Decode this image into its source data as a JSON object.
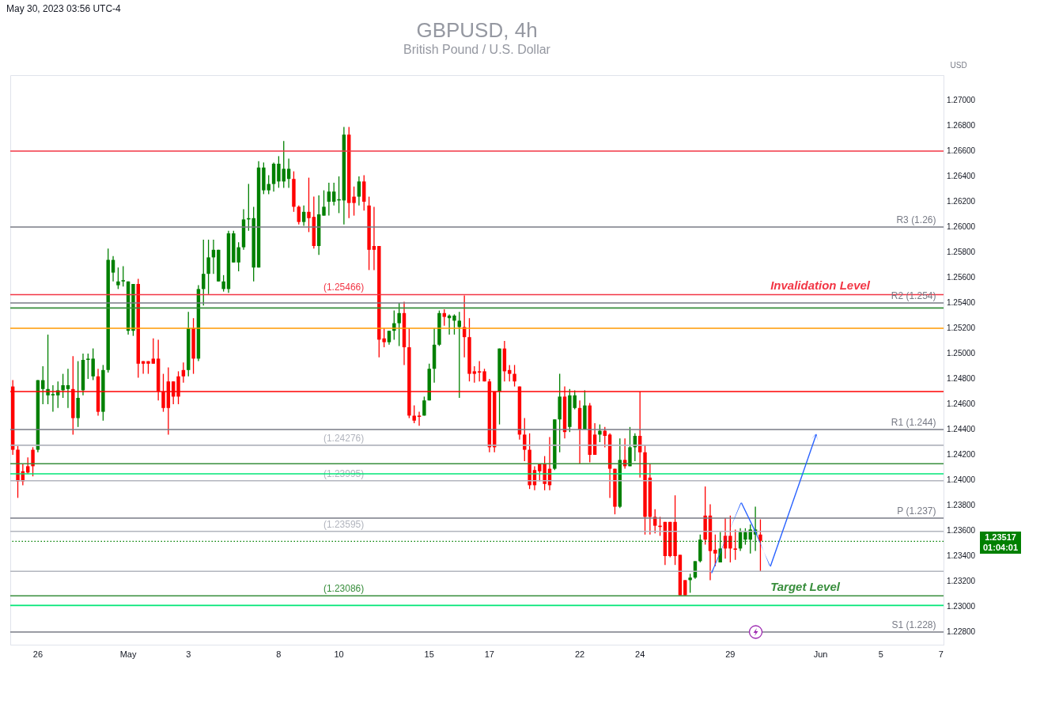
{
  "chart_data": {
    "type": "candlestick",
    "title": "GBPUSD, 4h",
    "subtitle": "British Pound / U.S. Dollar",
    "ylabel": "USD",
    "categories": [
      null,
      null,
      null,
      null,
      null,
      "26",
      null,
      null,
      null,
      null,
      null,
      null,
      null,
      null,
      null,
      null,
      null,
      null,
      null,
      null,
      null,
      null,
      null,
      "May",
      null,
      null,
      null,
      null,
      null,
      null,
      null,
      null,
      null,
      null,
      null,
      "3",
      null,
      null,
      null,
      null,
      null,
      null,
      null,
      null,
      null,
      null,
      null,
      null,
      null,
      null,
      null,
      null,
      null,
      "8",
      null,
      null,
      null,
      null,
      null,
      null,
      null,
      null,
      null,
      null,
      null,
      "10",
      null,
      null,
      null,
      null,
      null,
      null,
      null,
      null,
      null,
      null,
      null,
      null,
      null,
      null,
      null,
      null,
      null,
      "15",
      null,
      null,
      null,
      null,
      null,
      null,
      null,
      null,
      null,
      null,
      null,
      "17",
      null,
      null,
      null,
      null,
      null,
      null,
      null,
      null,
      null,
      null,
      null,
      null,
      null,
      null,
      null,
      null,
      null,
      "22",
      null,
      null,
      null,
      null,
      null,
      null,
      null,
      null,
      null,
      null,
      null,
      "24",
      null,
      null,
      null,
      null,
      null,
      null,
      null,
      null,
      null,
      null,
      null,
      null,
      null,
      null,
      null,
      null,
      null,
      "29",
      null,
      null,
      null,
      null,
      null,
      null,
      null,
      null,
      null,
      null,
      null,
      null,
      null,
      null,
      null,
      null,
      null,
      "Jun",
      null,
      null,
      null,
      null,
      null,
      null,
      null,
      null,
      null,
      null,
      null,
      "5",
      null,
      null,
      null,
      null,
      null,
      null,
      null,
      null,
      null,
      null,
      null,
      "7"
    ],
    "ohlc": [
      [
        1.2474,
        1.2479,
        1.242,
        1.2424
      ],
      [
        1.2424,
        1.2427,
        1.2386,
        1.2399
      ],
      [
        1.2407,
        1.2413,
        1.2396,
        1.2399
      ],
      [
        1.2411,
        1.2418,
        1.2405,
        1.2406
      ],
      [
        1.2424,
        1.2426,
        1.2403,
        1.2411
      ],
      [
        1.2424,
        1.2479,
        1.2422,
        1.2479
      ],
      [
        1.2472,
        1.249,
        1.246,
        1.2479
      ],
      [
        1.2467,
        1.2515,
        1.246,
        1.2472
      ],
      [
        1.2467,
        1.2475,
        1.2454,
        1.2468
      ],
      [
        1.2467,
        1.2478,
        1.2457,
        1.2471
      ],
      [
        1.2471,
        1.2484,
        1.2465,
        1.2475
      ],
      [
        1.2472,
        1.2488,
        1.2457,
        1.2475
      ],
      [
        1.2472,
        1.2498,
        1.2436,
        1.2449
      ],
      [
        1.2449,
        1.2494,
        1.2442,
        1.2465
      ],
      [
        1.2471,
        1.25,
        1.2467,
        1.2495
      ],
      [
        1.2495,
        1.25,
        1.248,
        1.2496
      ],
      [
        1.2482,
        1.2504,
        1.2479,
        1.2496
      ],
      [
        1.2482,
        1.2488,
        1.2451,
        1.2454
      ],
      [
        1.2454,
        1.2491,
        1.2447,
        1.2487
      ],
      [
        1.2487,
        1.2583,
        1.2485,
        1.2574
      ],
      [
        1.2564,
        1.2577,
        1.2557,
        1.2574
      ],
      [
        1.2554,
        1.2568,
        1.2551,
        1.2557
      ],
      [
        1.2557,
        1.2569,
        1.2553,
        1.2558
      ],
      [
        1.2518,
        1.2557,
        1.2515,
        1.2557
      ],
      [
        1.2518,
        1.2555,
        1.2514,
        1.2555
      ],
      [
        1.2555,
        1.2559,
        1.2481,
        1.2492
      ],
      [
        1.2494,
        1.2494,
        1.2484,
        1.2492
      ],
      [
        1.2494,
        1.2494,
        1.2484,
        1.2492
      ],
      [
        1.2496,
        1.2512,
        1.2492,
        1.2492
      ],
      [
        1.2496,
        1.2511,
        1.2463,
        1.247
      ],
      [
        1.247,
        1.2484,
        1.2454,
        1.2457
      ],
      [
        1.2478,
        1.2489,
        1.2436,
        1.2457
      ],
      [
        1.2478,
        1.2478,
        1.246,
        1.2466
      ],
      [
        1.2482,
        1.2486,
        1.246,
        1.2466
      ],
      [
        1.2487,
        1.2493,
        1.2477,
        1.2482
      ],
      [
        1.2487,
        1.2533,
        1.2482,
        1.252
      ],
      [
        1.252,
        1.2528,
        1.2484,
        1.2496
      ],
      [
        1.2496,
        1.2554,
        1.2494,
        1.2551
      ],
      [
        1.2551,
        1.259,
        1.2538,
        1.2563
      ],
      [
        1.2563,
        1.259,
        1.2547,
        1.2576
      ],
      [
        1.2576,
        1.259,
        1.2563,
        1.2582
      ],
      [
        1.2557,
        1.2582,
        1.2557,
        1.2582
      ],
      [
        1.2551,
        1.2562,
        1.2549,
        1.2557
      ],
      [
        1.2551,
        1.2597,
        1.2548,
        1.2595
      ],
      [
        1.2572,
        1.2597,
        1.2572,
        1.2595
      ],
      [
        1.2572,
        1.2588,
        1.2565,
        1.2584
      ],
      [
        1.2584,
        1.2614,
        1.2582,
        1.2606
      ],
      [
        1.2606,
        1.2634,
        1.2597,
        1.2607
      ],
      [
        1.2568,
        1.2616,
        1.2557,
        1.2607
      ],
      [
        1.2568,
        1.2652,
        1.2568,
        1.2647
      ],
      [
        1.2629,
        1.2651,
        1.2626,
        1.2647
      ],
      [
        1.2629,
        1.2641,
        1.2626,
        1.2634
      ],
      [
        1.2634,
        1.2651,
        1.2628,
        1.265
      ],
      [
        1.2636,
        1.2656,
        1.2631,
        1.265
      ],
      [
        1.2636,
        1.2668,
        1.2631,
        1.2646
      ],
      [
        1.2638,
        1.2654,
        1.2631,
        1.2646
      ],
      [
        1.2638,
        1.2644,
        1.2612,
        1.2616
      ],
      [
        1.2616,
        1.2617,
        1.2602,
        1.2604
      ],
      [
        1.2604,
        1.2617,
        1.2601,
        1.2612
      ],
      [
        1.2612,
        1.2639,
        1.2596,
        1.2607
      ],
      [
        1.2608,
        1.2624,
        1.2583,
        1.2585
      ],
      [
        1.2585,
        1.2625,
        1.2578,
        1.261
      ],
      [
        1.2609,
        1.2629,
        1.2609,
        1.2616
      ],
      [
        1.262,
        1.2635,
        1.2609,
        1.2628
      ],
      [
        1.262,
        1.2635,
        1.2617,
        1.2628
      ],
      [
        1.2621,
        1.264,
        1.2611,
        1.2622
      ],
      [
        1.2621,
        1.2679,
        1.2602,
        1.2673
      ],
      [
        1.2673,
        1.2679,
        1.2607,
        1.2619
      ],
      [
        1.2624,
        1.2632,
        1.2609,
        1.2619
      ],
      [
        1.2624,
        1.264,
        1.2617,
        1.2636
      ],
      [
        1.2636,
        1.2641,
        1.2613,
        1.262
      ],
      [
        1.2617,
        1.2624,
        1.2566,
        1.2582
      ],
      [
        1.2585,
        1.2616,
        1.2566,
        1.2582
      ],
      [
        1.2585,
        1.2585,
        1.2497,
        1.2511
      ],
      [
        1.2512,
        1.252,
        1.2505,
        1.2509
      ],
      [
        1.2509,
        1.2518,
        1.2507,
        1.2518
      ],
      [
        1.2518,
        1.2534,
        1.2511,
        1.2524
      ],
      [
        1.2524,
        1.254,
        1.2506,
        1.2532
      ],
      [
        1.2532,
        1.2541,
        1.2491,
        1.2505
      ],
      [
        1.2505,
        1.252,
        1.2449,
        1.2451
      ],
      [
        1.2451,
        1.2459,
        1.2445,
        1.2447
      ],
      [
        1.2451,
        1.2454,
        1.2443,
        1.245
      ],
      [
        1.2451,
        1.2466,
        1.2451,
        1.2463
      ],
      [
        1.2463,
        1.2492,
        1.2463,
        1.2488
      ],
      [
        1.2488,
        1.252,
        1.2477,
        1.2507
      ],
      [
        1.2507,
        1.2534,
        1.2506,
        1.2532
      ],
      [
        1.2532,
        1.2535,
        1.2522,
        1.2529
      ],
      [
        1.2528,
        1.2531,
        1.2515,
        1.253
      ],
      [
        1.2526,
        1.2531,
        1.2515,
        1.253
      ],
      [
        1.2521,
        1.2533,
        1.2465,
        1.2526
      ],
      [
        1.2521,
        1.2546,
        1.2497,
        1.2513
      ],
      [
        1.2513,
        1.2528,
        1.2478,
        1.2484
      ],
      [
        1.2486,
        1.249,
        1.2477,
        1.2484
      ],
      [
        1.2486,
        1.2494,
        1.2478,
        1.2485
      ],
      [
        1.2486,
        1.2488,
        1.2478,
        1.2478
      ],
      [
        1.2478,
        1.248,
        1.2422,
        1.2426
      ],
      [
        1.247,
        1.247,
        1.2422,
        1.2426
      ],
      [
        1.247,
        1.2504,
        1.2444,
        1.2504
      ],
      [
        1.2504,
        1.251,
        1.2478,
        1.2486
      ],
      [
        1.2487,
        1.2491,
        1.2478,
        1.2484
      ],
      [
        1.2484,
        1.2491,
        1.2474,
        1.2478
      ],
      [
        1.2474,
        1.2474,
        1.2432,
        1.2436
      ],
      [
        1.2436,
        1.2449,
        1.2415,
        1.2424
      ],
      [
        1.2424,
        1.2437,
        1.2393,
        1.2396
      ],
      [
        1.2408,
        1.2411,
        1.2392,
        1.2396
      ],
      [
        1.2413,
        1.2413,
        1.2399,
        1.2407
      ],
      [
        1.2413,
        1.2419,
        1.2392,
        1.2397
      ],
      [
        1.2409,
        1.2434,
        1.2392,
        1.2396
      ],
      [
        1.2409,
        1.2448,
        1.2408,
        1.2448
      ],
      [
        1.2448,
        1.2484,
        1.2422,
        1.2466
      ],
      [
        1.2466,
        1.2474,
        1.2433,
        1.2438
      ],
      [
        1.2442,
        1.2472,
        1.2438,
        1.2467
      ],
      [
        1.2457,
        1.2471,
        1.2456,
        1.2467
      ],
      [
        1.2457,
        1.2463,
        1.2413,
        1.244
      ],
      [
        1.244,
        1.2471,
        1.244,
        1.2459
      ],
      [
        1.2459,
        1.2461,
        1.2414,
        1.242
      ],
      [
        1.2436,
        1.2445,
        1.242,
        1.242
      ],
      [
        1.2436,
        1.2444,
        1.243,
        1.2439
      ],
      [
        1.2439,
        1.2442,
        1.2426,
        1.2435
      ],
      [
        1.2436,
        1.2437,
        1.2386,
        1.2409
      ],
      [
        1.2409,
        1.2409,
        1.2373,
        1.2379
      ],
      [
        1.2379,
        1.2433,
        1.2378,
        1.2416
      ],
      [
        1.2416,
        1.2433,
        1.2409,
        1.2411
      ],
      [
        1.2411,
        1.2442,
        1.2411,
        1.2426
      ],
      [
        1.2426,
        1.2437,
        1.2415,
        1.2435
      ],
      [
        1.2435,
        1.247,
        1.2402,
        1.2422
      ],
      [
        1.2422,
        1.2428,
        1.2357,
        1.2371
      ],
      [
        1.2402,
        1.2413,
        1.2357,
        1.2371
      ],
      [
        1.2371,
        1.2377,
        1.2358,
        1.2364
      ],
      [
        1.2364,
        1.2371,
        1.2356,
        1.2363
      ],
      [
        1.2367,
        1.2367,
        1.2333,
        1.234
      ],
      [
        1.2367,
        1.2367,
        1.2339,
        1.234
      ],
      [
        1.2367,
        1.2388,
        1.2333,
        1.234
      ],
      [
        1.2341,
        1.2341,
        1.2309,
        1.2309
      ],
      [
        1.2321,
        1.2321,
        1.2309,
        1.2309
      ],
      [
        1.2321,
        1.2326,
        1.2311,
        1.2323
      ],
      [
        1.2323,
        1.2336,
        1.2322,
        1.2336
      ],
      [
        1.2336,
        1.2357,
        1.2335,
        1.2353
      ],
      [
        1.2372,
        1.2395,
        1.2349,
        1.2353
      ],
      [
        1.2372,
        1.2381,
        1.2321,
        1.2344
      ],
      [
        1.2345,
        1.2357,
        1.2332,
        1.2342
      ],
      [
        1.2335,
        1.2359,
        1.2335,
        1.2346
      ],
      [
        1.2356,
        1.237,
        1.2338,
        1.2346
      ],
      [
        1.2356,
        1.2372,
        1.2335,
        1.2346
      ],
      [
        1.2346,
        1.2361,
        1.2337,
        1.2345
      ],
      [
        1.2346,
        1.2362,
        1.2344,
        1.2359
      ],
      [
        1.2353,
        1.2362,
        1.2349,
        1.2359
      ],
      [
        1.2353,
        1.2365,
        1.2342,
        1.2361
      ],
      [
        1.2357,
        1.2379,
        1.2344,
        1.2361
      ],
      [
        1.2357,
        1.2369,
        1.2328,
        1.2352
      ],
      null,
      null,
      null,
      null,
      null,
      null,
      null,
      null,
      null,
      null,
      null,
      null,
      null,
      null,
      null,
      null,
      null,
      null,
      null,
      null,
      null,
      null,
      null,
      null,
      null,
      null,
      null,
      null,
      null,
      null,
      null,
      null,
      null,
      null,
      null,
      null
    ],
    "colors": [
      "#ff0000",
      "#ff0000",
      "#ff0000",
      "#ff0000",
      "#ff0000",
      "#008000",
      "#008000",
      "#008000",
      "#008000",
      "#008000",
      "#008000",
      "#008000",
      "#ff0000",
      "#008000",
      "#008000",
      "#008000",
      "#008000",
      "#ff0000",
      "#008000",
      "#008000",
      "#008000",
      "#008000",
      "#008000",
      "#008000",
      "#008000",
      "#ff0000",
      "#ff0000",
      "#ff0000",
      "#ff0000",
      "#ff0000",
      "#ff0000",
      "#ff0000",
      "#ff0000",
      "#ff0000",
      "#ff0000",
      "#008000",
      "#ff0000",
      "#008000",
      "#008000",
      "#008000",
      "#008000",
      "#008000",
      "#008000",
      "#008000",
      "#008000",
      "#008000",
      "#008000",
      "#008000",
      "#008000",
      "#008000",
      "#008000",
      "#008000",
      "#008000",
      "#008000",
      "#008000",
      "#008000",
      "#ff0000",
      "#ff0000",
      "#008000",
      "#ff0000",
      "#ff0000",
      "#008000",
      "#008000",
      "#008000",
      "#008000",
      "#008000",
      "#008000",
      "#ff0000",
      "#ff0000",
      "#008000",
      "#ff0000",
      "#ff0000",
      "#ff0000",
      "#ff0000",
      "#ff0000",
      "#008000",
      "#008000",
      "#008000",
      "#ff0000",
      "#ff0000",
      "#ff0000",
      "#ff0000",
      "#008000",
      "#008000",
      "#008000",
      "#008000",
      "#ff0000",
      "#008000",
      "#008000",
      "#008000",
      "#ff0000",
      "#ff0000",
      "#ff0000",
      "#ff0000",
      "#ff0000",
      "#ff0000",
      "#ff0000",
      "#008000",
      "#ff0000",
      "#ff0000",
      "#ff0000",
      "#ff0000",
      "#ff0000",
      "#ff0000",
      "#ff0000",
      "#ff0000",
      "#ff0000",
      "#ff0000",
      "#008000",
      "#008000",
      "#ff0000",
      "#008000",
      "#008000",
      "#ff0000",
      "#008000",
      "#ff0000",
      "#ff0000",
      "#008000",
      "#ff0000",
      "#ff0000",
      "#ff0000",
      "#008000",
      "#ff0000",
      "#008000",
      "#008000",
      "#ff0000",
      "#ff0000",
      "#ff0000",
      "#ff0000",
      "#ff0000",
      "#ff0000",
      "#ff0000",
      "#ff0000",
      "#ff0000",
      "#ff0000",
      "#008000",
      "#008000",
      "#008000",
      "#ff0000",
      "#ff0000",
      "#ff0000",
      "#008000",
      "#ff0000",
      "#ff0000",
      "#ff0000",
      "#008000",
      "#008000",
      "#008000",
      "#008000",
      "#ff0000",
      null,
      null,
      null,
      null,
      null,
      null,
      null,
      null,
      null,
      null,
      null,
      null,
      null,
      null,
      null,
      null,
      null,
      null,
      null,
      null,
      null,
      null,
      null,
      null,
      null,
      null,
      null,
      null,
      null,
      null,
      null,
      null,
      null,
      null,
      null,
      null
    ],
    "ylim": [
      1.227,
      1.272
    ],
    "yticks": [
      {
        "value": 1.228,
        "label": "1.22800"
      },
      {
        "value": 1.23,
        "label": "1.23000"
      },
      {
        "value": 1.232,
        "label": "1.23200"
      },
      {
        "value": 1.234,
        "label": "1.23400"
      },
      {
        "value": 1.236,
        "label": "1.23600"
      },
      {
        "value": 1.238,
        "label": "1.23800"
      },
      {
        "value": 1.24,
        "label": "1.24000"
      },
      {
        "value": 1.242,
        "label": "1.24200"
      },
      {
        "value": 1.244,
        "label": "1.24400"
      },
      {
        "value": 1.246,
        "label": "1.24600"
      },
      {
        "value": 1.248,
        "label": "1.24800"
      },
      {
        "value": 1.25,
        "label": "1.25000"
      },
      {
        "value": 1.252,
        "label": "1.25200"
      },
      {
        "value": 1.254,
        "label": "1.25400"
      },
      {
        "value": 1.256,
        "label": "1.25600"
      },
      {
        "value": 1.258,
        "label": "1.25800"
      },
      {
        "value": 1.26,
        "label": "1.26000"
      },
      {
        "value": 1.262,
        "label": "1.26200"
      },
      {
        "value": 1.264,
        "label": "1.26400"
      },
      {
        "value": 1.266,
        "label": "1.26600"
      },
      {
        "value": 1.268,
        "label": "1.26800"
      },
      {
        "value": 1.27,
        "label": "1.27000"
      }
    ],
    "ref_lines": [
      {
        "axis": "y",
        "value": 1.266,
        "color": "#f23645"
      },
      {
        "axis": "y",
        "value": 1.25466,
        "label": "(1.25466)",
        "color": "#f23645"
      },
      {
        "axis": "y",
        "value": 1.26,
        "label": "R3 (1.26)",
        "color": "#787b86"
      },
      {
        "axis": "y",
        "value": 1.24276,
        "label": "(1.24276)",
        "color": "#b2b5be"
      },
      {
        "axis": "y",
        "value": 1.254,
        "label": "R2 (1.254)",
        "color": "#787b86"
      },
      {
        "axis": "y",
        "value": 1.23995,
        "label": "(1.23995)",
        "color": "#b2b5be"
      },
      {
        "axis": "y",
        "value": 1.244,
        "label": "R1 (1.244)",
        "color": "#787b86"
      },
      {
        "axis": "y",
        "value": 1.23595,
        "label": "(1.23595)",
        "color": "#b2b5be"
      },
      {
        "axis": "y",
        "value": 1.237,
        "label": "P (1.237)",
        "color": "#787b86"
      },
      {
        "axis": "y",
        "value": 1.23086,
        "label": "(1.23086)",
        "color": "#388e3c"
      },
      {
        "axis": "y",
        "value": 1.228,
        "label": "S1 (1.228)",
        "color": "#787b86"
      },
      {
        "axis": "y",
        "value": 1.2536,
        "color": "#388e3c"
      },
      {
        "axis": "y",
        "value": 1.247,
        "color": "#ff0000"
      },
      {
        "axis": "y",
        "value": 1.2413,
        "color": "#388e3c"
      },
      {
        "axis": "y",
        "value": 1.2328,
        "color": "#b2b5be"
      },
      {
        "axis": "y",
        "value": 1.252,
        "color": "#ff9800"
      },
      {
        "axis": "y",
        "value": 1.2405,
        "color": "#00e676"
      },
      {
        "axis": "y",
        "value": 1.2301,
        "color": "#00e676"
      },
      {
        "axis": "y",
        "value": 1.23517,
        "color": "#008000",
        "line_style": "dotted"
      }
    ],
    "annotations": [
      "May 30, 2023 03:56 UTC-4",
      {
        "text": "Invalidation Level",
        "y": 1.25466
      },
      {
        "text": "Target  Level",
        "y": 1.23086
      },
      "1.23517",
      "01:04:01"
    ]
  }
}
